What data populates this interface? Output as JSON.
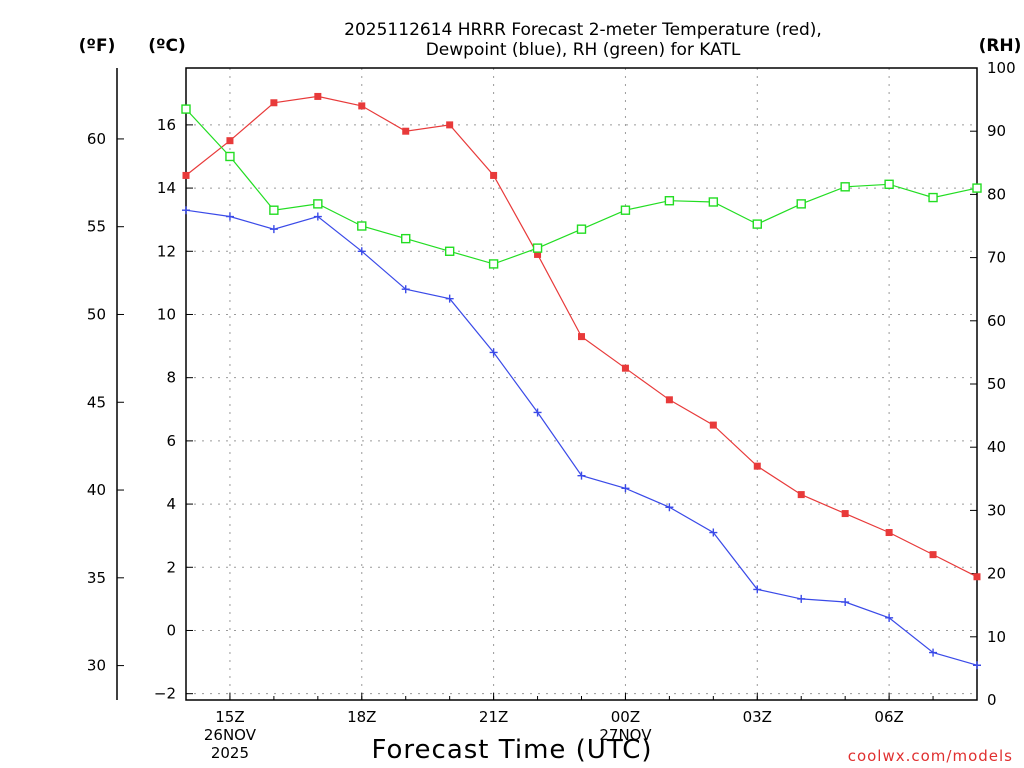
{
  "chart_data": {
    "type": "line",
    "title_lines": [
      "2025112614 HRRR Forecast 2-meter Temperature (red),",
      "Dewpoint (blue), RH (green) for KATL"
    ],
    "xlabel": "Forecast Time (UTC)",
    "left_unit_f": "(ºF)",
    "left_unit_c": "(ºC)",
    "right_unit": "(RH)",
    "ylim_c": [
      -2.2,
      17.8
    ],
    "ylim_rh": [
      0,
      100
    ],
    "x_range": [
      14,
      32
    ],
    "celsius_ticks": [
      "-2",
      "0",
      "2",
      "4",
      "6",
      "8",
      "10",
      "12",
      "14",
      "16"
    ],
    "fahrenheit_ticks": [
      "30",
      "35",
      "40",
      "45",
      "50",
      "55",
      "60"
    ],
    "rh_ticks": [
      "0",
      "10",
      "20",
      "30",
      "40",
      "50",
      "60",
      "70",
      "80",
      "90",
      "100"
    ],
    "x_ticks": [
      {
        "x": 15,
        "line1": "15Z",
        "line2": "26NOV",
        "line3": "2025"
      },
      {
        "x": 18,
        "line1": "18Z",
        "line2": "",
        "line3": ""
      },
      {
        "x": 21,
        "line1": "21Z",
        "line2": "",
        "line3": ""
      },
      {
        "x": 24,
        "line1": "00Z",
        "line2": "27NOV",
        "line3": ""
      },
      {
        "x": 27,
        "line1": "03Z",
        "line2": "",
        "line3": ""
      },
      {
        "x": 30,
        "line1": "06Z",
        "line2": "",
        "line3": ""
      }
    ],
    "hours": [
      14,
      15,
      16,
      17,
      18,
      19,
      20,
      21,
      22,
      23,
      24,
      25,
      26,
      27,
      28,
      29,
      30,
      31,
      32
    ],
    "series": [
      {
        "name": "Temperature",
        "units": "C",
        "color": "#e83a3a",
        "marker": "filled-square",
        "values": [
          14.4,
          15.5,
          16.7,
          16.9,
          16.6,
          15.8,
          16.0,
          14.4,
          11.9,
          9.3,
          8.3,
          7.3,
          6.5,
          5.2,
          4.3,
          3.7,
          3.1,
          2.4,
          1.7
        ]
      },
      {
        "name": "Dewpoint",
        "units": "C",
        "color": "#3a4ae8",
        "marker": "plus",
        "values": [
          13.3,
          13.1,
          12.7,
          13.1,
          12.0,
          10.8,
          10.5,
          8.8,
          6.9,
          4.9,
          4.5,
          3.9,
          3.1,
          1.3,
          1.0,
          0.9,
          0.4,
          -0.7,
          -1.1
        ]
      },
      {
        "name": "RH",
        "units": "%",
        "color": "#22dd22",
        "marker": "open-square",
        "values": [
          93.5,
          86,
          77.5,
          78.5,
          75,
          73,
          71,
          69,
          71.5,
          74.5,
          77.5,
          79,
          78.8,
          75.3,
          78.5,
          81.2,
          81.6,
          79.5,
          81
        ]
      }
    ]
  },
  "credit": "coolwx.com/models"
}
